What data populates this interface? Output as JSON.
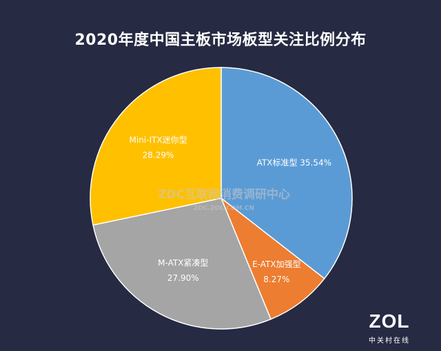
{
  "chart_data": {
    "type": "pie",
    "title": "2020年度中国主板市场板型关注比例分布",
    "start_angle_deg": 0,
    "direction": "clockwise",
    "slices": [
      {
        "label": "ATX标准型",
        "percent_text": "35.54%",
        "value": 35.54,
        "color": "#5b9bd5"
      },
      {
        "label": "E-ATX加强型",
        "percent_text": "8.27%",
        "value": 8.27,
        "color": "#ed7d31"
      },
      {
        "label": "M-ATX紧凑型",
        "percent_text": "27.90%",
        "value": 27.9,
        "color": "#a5a5a5"
      },
      {
        "label": "Mini-ITX迷你型",
        "percent_text": "28.29%",
        "value": 28.29,
        "color": "#ffc000"
      }
    ]
  },
  "watermark": {
    "main": "ZDC互联网消费调研中心",
    "sub": "ZDC.ZOL.COM.CN"
  },
  "logo": {
    "main": "ZOL",
    "sub": "中关村在线"
  }
}
